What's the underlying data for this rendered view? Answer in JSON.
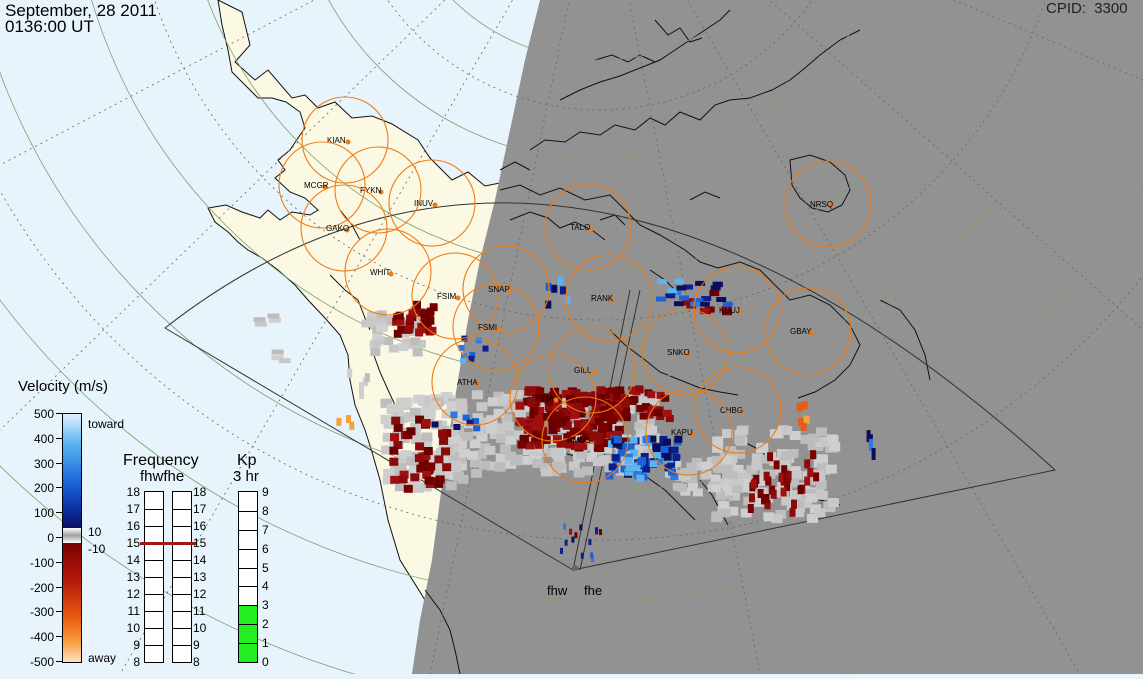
{
  "header": {
    "date": "September, 28 2011",
    "time": "0136:00 UT",
    "cpid_label": "CPID:",
    "cpid_value": "3300"
  },
  "radars": [
    "fhw",
    "fhe"
  ],
  "stations": [
    {
      "code": "KIAN"
    },
    {
      "code": "MCGR"
    },
    {
      "code": "FYKN"
    },
    {
      "code": "INUV"
    },
    {
      "code": "GAKO"
    },
    {
      "code": "WHIT"
    },
    {
      "code": "FSIM"
    },
    {
      "code": "SNAP"
    },
    {
      "code": "FSMI"
    },
    {
      "code": "TALO"
    },
    {
      "code": "RANK"
    },
    {
      "code": "KUUJ"
    },
    {
      "code": "NRSQ"
    },
    {
      "code": "GBAY"
    },
    {
      "code": "SNKO"
    },
    {
      "code": "ATHA"
    },
    {
      "code": "GILL"
    },
    {
      "code": "PINA"
    },
    {
      "code": "CHBG"
    },
    {
      "code": "KAPU"
    },
    {
      "code": "RMUS"
    }
  ],
  "velocity_legend": {
    "title": "Velocity (m/s)",
    "toward_label": "toward",
    "away_label": "away",
    "ticks": [
      "500",
      "400",
      "300",
      "200",
      "100",
      "0",
      "-100",
      "-200",
      "-300",
      "-400",
      "-500"
    ],
    "threshold_pos": "10",
    "threshold_neg": "-10"
  },
  "frequency_legend": {
    "title": "Frequency",
    "subtitle": "fhwfhe",
    "ticks": [
      "18",
      "17",
      "16",
      "15",
      "14",
      "13",
      "12",
      "11",
      "10",
      "9",
      "8"
    ],
    "fhw_value": 15,
    "fhe_value": 15
  },
  "kp_legend": {
    "title": "Kp",
    "subtitle": "3 hr",
    "ticks": [
      "9",
      "8",
      "7",
      "6",
      "5",
      "4",
      "3",
      "2",
      "1",
      "0"
    ],
    "value": 3
  },
  "colors": {
    "ocean": "#e8f4fb",
    "land": "#fbf8e4",
    "night": "#929292",
    "fov_circle": "#f07a12",
    "ground_scatter": "#c8c8c8",
    "grid": "#7d9e6e"
  }
}
